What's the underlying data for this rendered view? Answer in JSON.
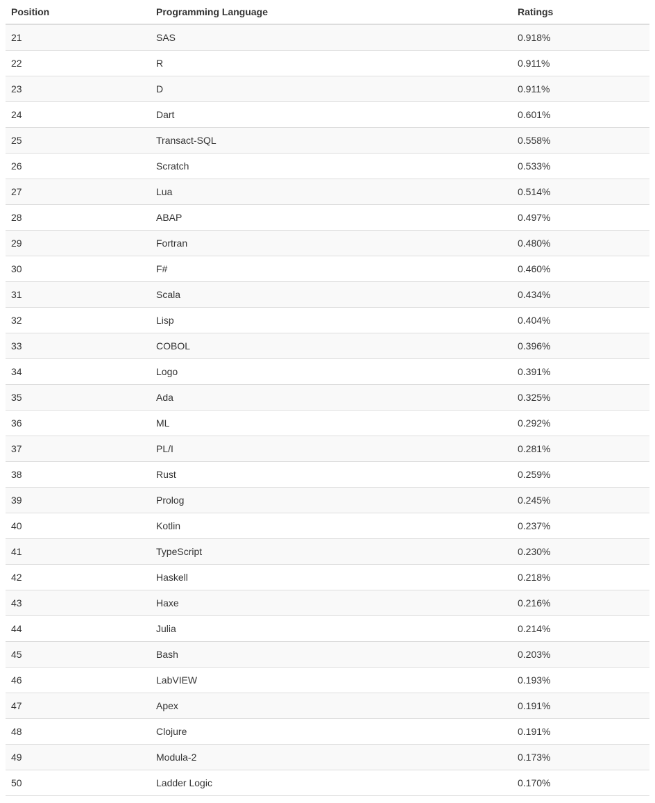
{
  "table": {
    "headers": [
      "Position",
      "Programming Language",
      "Ratings"
    ],
    "rows": [
      [
        "21",
        "SAS",
        "0.918%"
      ],
      [
        "22",
        "R",
        "0.911%"
      ],
      [
        "23",
        "D",
        "0.911%"
      ],
      [
        "24",
        "Dart",
        "0.601%"
      ],
      [
        "25",
        "Transact-SQL",
        "0.558%"
      ],
      [
        "26",
        "Scratch",
        "0.533%"
      ],
      [
        "27",
        "Lua",
        "0.514%"
      ],
      [
        "28",
        "ABAP",
        "0.497%"
      ],
      [
        "29",
        "Fortran",
        "0.480%"
      ],
      [
        "30",
        "F#",
        "0.460%"
      ],
      [
        "31",
        "Scala",
        "0.434%"
      ],
      [
        "32",
        "Lisp",
        "0.404%"
      ],
      [
        "33",
        "COBOL",
        "0.396%"
      ],
      [
        "34",
        "Logo",
        "0.391%"
      ],
      [
        "35",
        "Ada",
        "0.325%"
      ],
      [
        "36",
        "ML",
        "0.292%"
      ],
      [
        "37",
        "PL/I",
        "0.281%"
      ],
      [
        "38",
        "Rust",
        "0.259%"
      ],
      [
        "39",
        "Prolog",
        "0.245%"
      ],
      [
        "40",
        "Kotlin",
        "0.237%"
      ],
      [
        "41",
        "TypeScript",
        "0.230%"
      ],
      [
        "42",
        "Haskell",
        "0.218%"
      ],
      [
        "43",
        "Haxe",
        "0.216%"
      ],
      [
        "44",
        "Julia",
        "0.214%"
      ],
      [
        "45",
        "Bash",
        "0.203%"
      ],
      [
        "46",
        "LabVIEW",
        "0.193%"
      ],
      [
        "47",
        "Apex",
        "0.191%"
      ],
      [
        "48",
        "Clojure",
        "0.191%"
      ],
      [
        "49",
        "Modula-2",
        "0.173%"
      ],
      [
        "50",
        "Ladder Logic",
        "0.170%"
      ]
    ]
  },
  "colors": {
    "text": "#333333",
    "stripe": "#f9f9f9",
    "border": "#dddddd"
  }
}
